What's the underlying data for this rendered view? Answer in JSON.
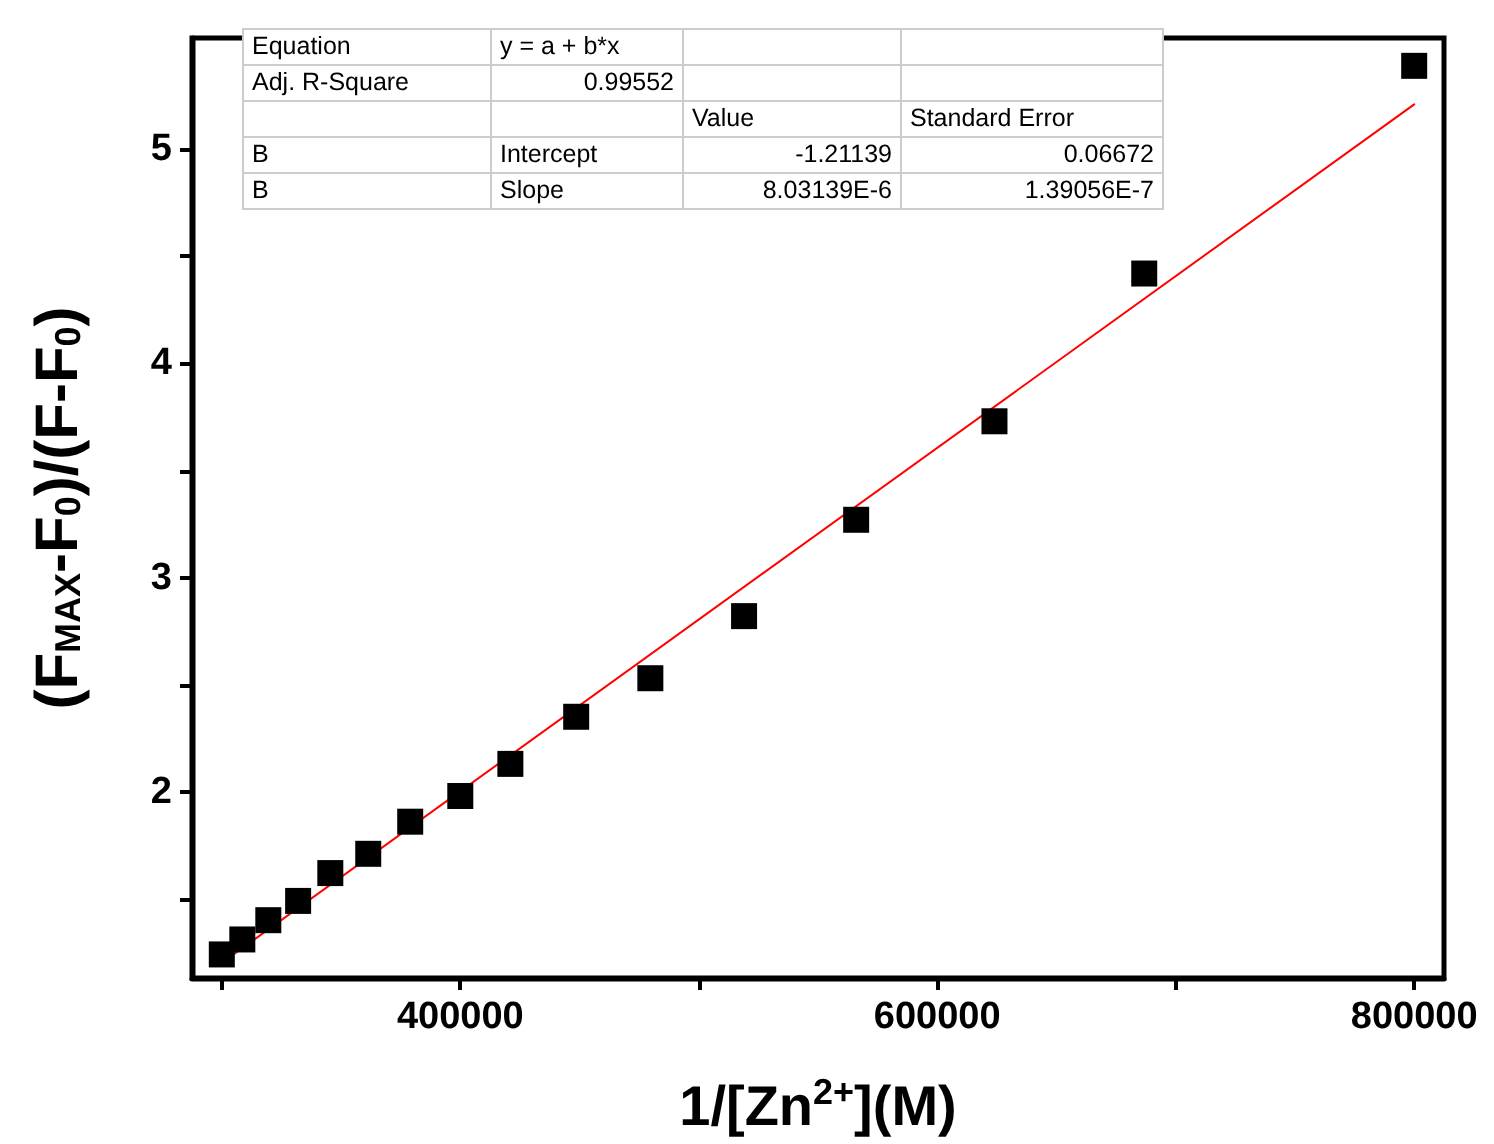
{
  "chart_data": {
    "type": "scatter",
    "xlabel": "1/[Zn$^{2+}$](M)",
    "ylabel": "(F$_{MAX}$-F$_{0}$)/(F-F$_{0}$)",
    "x": [
      300000,
      308600,
      319500,
      332000,
      345500,
      361400,
      379000,
      400000,
      421000,
      448600,
      479700,
      519000,
      566000,
      624000,
      686800,
      800000
    ],
    "series": [
      {
        "color": "#000000",
        "marker": "square",
        "values": [
          1.24,
          1.31,
          1.4,
          1.49,
          1.62,
          1.71,
          1.86,
          1.98,
          2.13,
          2.35,
          2.53,
          2.82,
          3.27,
          3.73,
          4.42,
          5.39
        ]
      },
      {
        "type": "line",
        "color": "#ff0000",
        "marker": "none",
        "line_style": "solid",
        "x": [
          300000,
          800000
        ],
        "values": [
          1.2,
          5.21
        ]
      }
    ],
    "xlim": [
      287500,
      812500
    ],
    "xticks": [
      {
        "value": 300000,
        "label": null
      },
      400000,
      {
        "value": 500000,
        "label": null
      },
      600000,
      {
        "value": 700000,
        "label": null
      },
      800000
    ],
    "ylim": [
      1.13,
      5.52
    ],
    "yticks": [
      {
        "value": 1.5,
        "label": null
      },
      2,
      {
        "value": 2.5,
        "label": null
      },
      3,
      {
        "value": 3.5,
        "label": null
      },
      4,
      {
        "value": 4.5,
        "label": null
      },
      5
    ],
    "grid": false,
    "annotations": [
      "Equation",
      "y = a + b*x",
      "Adj. R-Square",
      "0.99552",
      "Value",
      "Standard Error",
      "B",
      "Intercept",
      "-1.21139",
      "0.06672",
      "B",
      "Slope",
      "8.03139E-6",
      "1.39056E-7"
    ]
  }
}
